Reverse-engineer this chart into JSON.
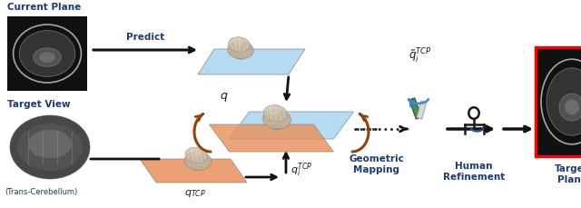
{
  "fig_width": 6.4,
  "fig_height": 2.29,
  "dpi": 100,
  "bg_color": "#ffffff",
  "blue": "#1e3a6e",
  "dark": "#1a1a1a",
  "arrow_color": "#111111",
  "orange_color": "#8b4513",
  "blue_plane_color": "#a8d4f0",
  "orange_plane_color": "#e8915a",
  "labels": {
    "current_plane": "Current Plane",
    "target_view": "Target View",
    "trans_cerebellum": "(Trans-Cerebellum)",
    "predict": "Predict",
    "geometric_mapping": "Geometric\nMapping",
    "human_refinement": "Human\nRefinement",
    "target_plane": "Target\nPlane"
  }
}
